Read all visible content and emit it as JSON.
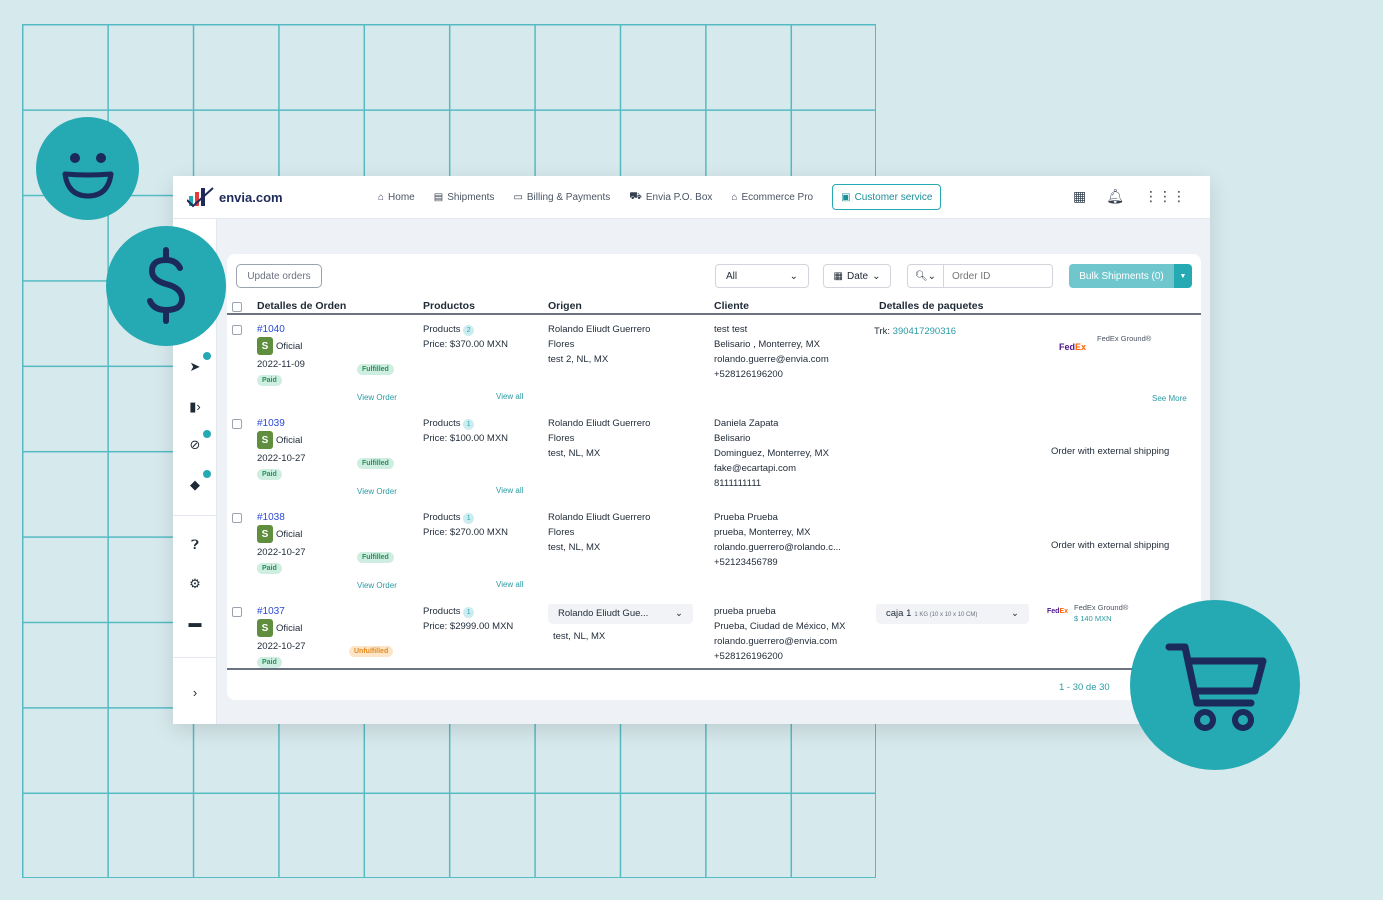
{
  "app": {
    "logo_text": "envia.com",
    "nav": [
      {
        "icon": "home-icon",
        "glyph": "⌂",
        "label": "Home"
      },
      {
        "icon": "document-icon",
        "glyph": "▤",
        "label": "Shipments"
      },
      {
        "icon": "billing-icon",
        "glyph": "▭",
        "label": "Billing & Payments"
      },
      {
        "icon": "truck-icon",
        "glyph": "⛟",
        "label": "Envia P.O. Box"
      },
      {
        "icon": "store-icon",
        "glyph": "⌂",
        "label": "Ecommerce Pro"
      },
      {
        "icon": "support-icon",
        "glyph": "▣",
        "label": "Customer service"
      }
    ]
  },
  "toolbar": {
    "update_orders": "Update orders",
    "filter_all": "All",
    "date": "Date",
    "search_placeholder": "Order ID",
    "bulk_shipments": "Bulk Shipments (0)"
  },
  "table": {
    "headers": [
      "Detalles de Orden",
      "Productos",
      "Origen",
      "Cliente",
      "Detalles de paquetes"
    ],
    "rows": [
      {
        "order": "#1040",
        "store": "Oficial",
        "date": "2022-11-09",
        "payment": "Paid",
        "status": "Fulfilled",
        "view_order": "View Order",
        "products_label": "Products",
        "products_count": "2",
        "price": "Price:  $370.00 MXN",
        "view_all": "View all",
        "origin": [
          "Rolando Eliudt Guerrero",
          "Flores",
          "test 2, NL, MX"
        ],
        "client": [
          "test test",
          "Belisario , Monterrey, MX",
          "rolando.guerre@envia.com",
          "+528126196200"
        ],
        "trk_label": "Trk:",
        "trk": "390417290316",
        "carrier": "FedEx Ground®",
        "see_more": "See More"
      },
      {
        "order": "#1039",
        "store": "Oficial",
        "date": "2022-10-27",
        "payment": "Paid",
        "status": "Fulfilled",
        "view_order": "View Order",
        "products_label": "Products",
        "products_count": "1",
        "price": "Price:  $100.00 MXN",
        "view_all": "View all",
        "origin": [
          "Rolando Eliudt Guerrero",
          "Flores",
          "test, NL, MX"
        ],
        "client": [
          "Daniela Zapata",
          "Belisario",
          "Dominguez, Monterrey, MX",
          "fake@ecartapi.com",
          "8111111111"
        ],
        "external": "Order with external shipping"
      },
      {
        "order": "#1038",
        "store": "Oficial",
        "date": "2022-10-27",
        "payment": "Paid",
        "status": "Fulfilled",
        "view_order": "View Order",
        "products_label": "Products",
        "products_count": "1",
        "price": "Price:  $270.00 MXN",
        "view_all": "View all",
        "origin": [
          "Rolando Eliudt Guerrero",
          "Flores",
          "test, NL, MX"
        ],
        "client": [
          "Prueba Prueba",
          "prueba, Monterrey, MX",
          "rolando.guerrero@rolando.c...",
          "+52123456789"
        ],
        "external": "Order with external shipping"
      },
      {
        "order": "#1037",
        "store": "Oficial",
        "date": "2022-10-27",
        "payment": "Paid",
        "status": "Unfulfilled",
        "products_label": "Products",
        "products_count": "1",
        "price": "Price:  $2999.00 MXN",
        "origin_select": "Rolando Eliudt Gue...",
        "origin_sub": "test, NL, MX",
        "client": [
          "prueba prueba",
          "Prueba, Ciudad de México, MX",
          "rolando.guerrero@envia.com",
          "+528126196200"
        ],
        "package_select": "caja 1",
        "package_dims": "1 KG (10 x 10 x 10 CM)",
        "carrier": "FedEx Ground®",
        "carrier_price": "$ 140 MXN"
      }
    ]
  },
  "pagination": "1 - 30 de 30",
  "colors": {
    "accent": "#25a9b2",
    "background": "#d6e9ec",
    "link": "#2b4ad8"
  }
}
